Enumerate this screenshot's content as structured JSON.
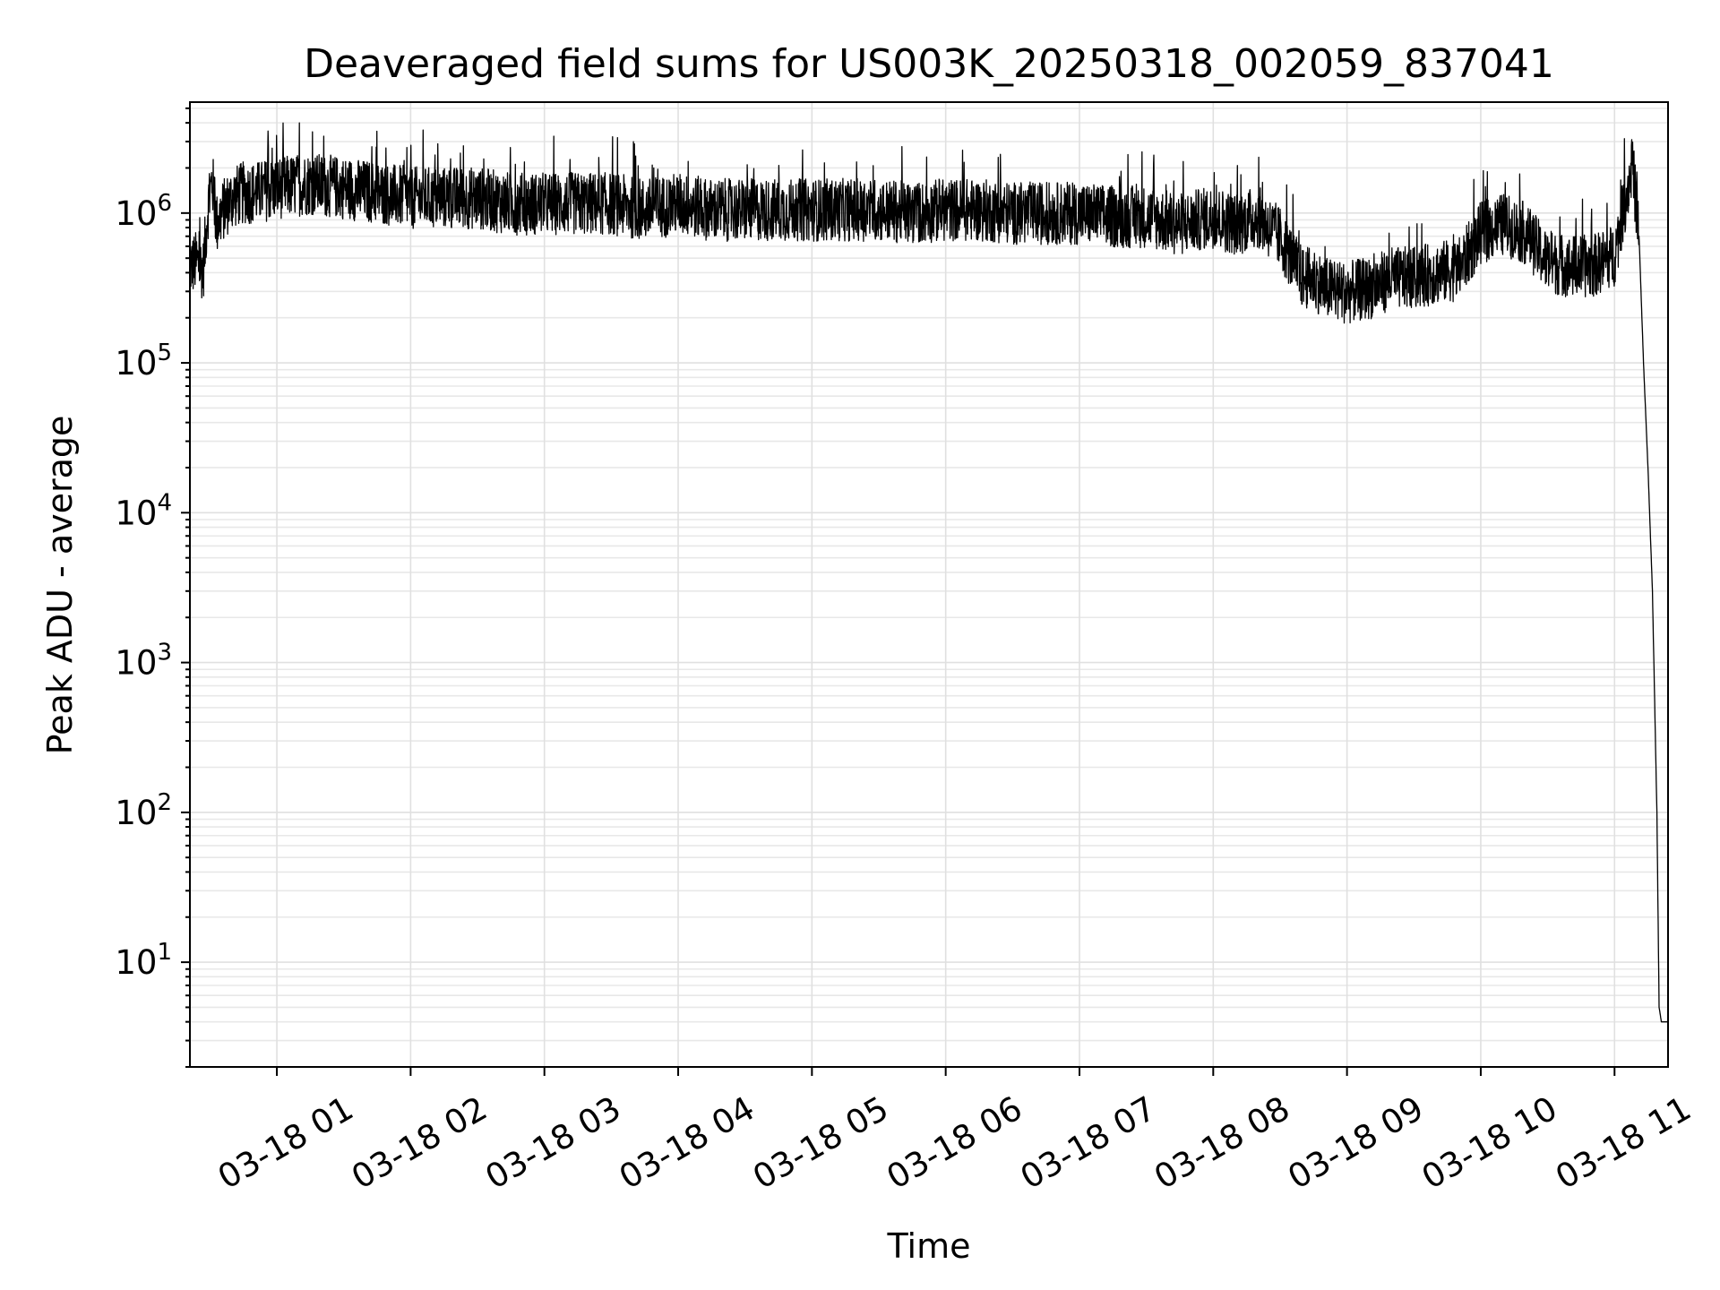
{
  "chart_data": {
    "type": "line",
    "title": "Deaveraged field sums for US003K_20250318_002059_837041",
    "xlabel": "Time",
    "ylabel": "Peak ADU - average",
    "yscale": "log",
    "ylim": [
      2,
      5500000
    ],
    "xlim": [
      "2025-03-18 00:21",
      "2025-03-18 11:24"
    ],
    "grid": "both",
    "x_ticks": [
      "03-18 01",
      "03-18 02",
      "03-18 03",
      "03-18 04",
      "03-18 05",
      "03-18 06",
      "03-18 07",
      "03-18 08",
      "03-18 09",
      "03-18 10",
      "03-18 11"
    ],
    "y_ticks": [
      {
        "base": "10",
        "exp": "1",
        "value": 10
      },
      {
        "base": "10",
        "exp": "2",
        "value": 100
      },
      {
        "base": "10",
        "exp": "3",
        "value": 1000
      },
      {
        "base": "10",
        "exp": "4",
        "value": 10000
      },
      {
        "base": "10",
        "exp": "5",
        "value": 100000
      },
      {
        "base": "10",
        "exp": "6",
        "value": 1000000
      }
    ],
    "series": [
      {
        "color": "#000000",
        "x": [
          "00:21",
          "00:24",
          "00:27",
          "00:29",
          "00:31",
          "00:33",
          "00:36",
          "00:40",
          "00:45",
          "00:50",
          "01:00",
          "01:15",
          "01:30",
          "01:45",
          "02:00",
          "02:15",
          "02:30",
          "02:45",
          "03:00",
          "03:15",
          "03:30",
          "03:45",
          "04:00",
          "04:15",
          "04:30",
          "04:45",
          "05:00",
          "05:15",
          "05:30",
          "05:45",
          "06:00",
          "06:15",
          "06:30",
          "06:45",
          "07:00",
          "07:15",
          "07:30",
          "07:45",
          "08:00",
          "08:10",
          "08:20",
          "08:30",
          "08:40",
          "08:45",
          "08:50",
          "09:00",
          "09:10",
          "09:20",
          "09:30",
          "09:40",
          "09:50",
          "10:00",
          "10:10",
          "10:20",
          "10:30",
          "10:40",
          "10:50",
          "11:00",
          "11:05",
          "11:08",
          "11:11",
          "11:13",
          "11:15",
          "11:17",
          "11:19",
          "11:20",
          "11:21",
          "11:22",
          "11:23",
          "11:24"
        ],
        "y": [
          420000,
          450000,
          400000,
          1000000,
          1600000,
          800000,
          1000000,
          1200000,
          1300000,
          1300000,
          1400000,
          1500000,
          1400000,
          1300000,
          1200000,
          1200000,
          1200000,
          1100000,
          1100000,
          1100000,
          1100000,
          1000000,
          1100000,
          1000000,
          1000000,
          1000000,
          1000000,
          1000000,
          1000000,
          950000,
          1000000,
          1000000,
          950000,
          950000,
          950000,
          900000,
          900000,
          800000,
          900000,
          800000,
          900000,
          650000,
          350000,
          350000,
          300000,
          280000,
          300000,
          350000,
          350000,
          380000,
          400000,
          700000,
          800000,
          700000,
          450000,
          420000,
          420000,
          500000,
          1200000,
          2000000,
          700000,
          100000,
          20000,
          3000,
          100,
          5,
          4,
          4,
          4,
          4
        ]
      }
    ]
  }
}
